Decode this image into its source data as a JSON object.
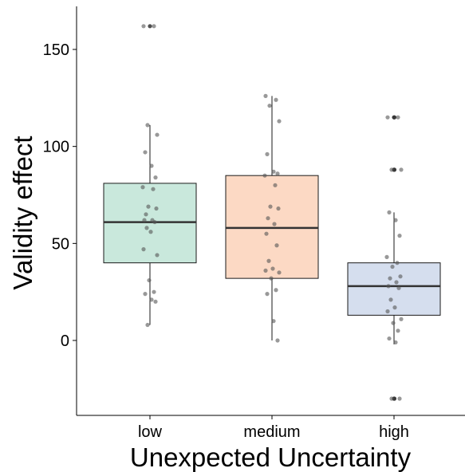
{
  "chart_data": {
    "type": "box",
    "title": "",
    "xlabel": "Unexpected Uncertainty",
    "ylabel": "Validity effect",
    "ylim": [
      -40,
      172
    ],
    "yticks": [
      0,
      50,
      100,
      150
    ],
    "grid": false,
    "legend": "none",
    "categories": [
      "low",
      "medium",
      "high"
    ],
    "boxes": [
      {
        "category": "low",
        "fill": "#c9e8dc",
        "q1": 40,
        "median": 61,
        "q3": 81,
        "whisker_low": 8,
        "whisker_high": 111,
        "outliers": [
          162
        ],
        "points": [
          162,
          162,
          111,
          106,
          97,
          90,
          84,
          79,
          78,
          69,
          68,
          65,
          62,
          62,
          61,
          58,
          56,
          47,
          44,
          31,
          25,
          24,
          21,
          20,
          8
        ]
      },
      {
        "category": "medium",
        "fill": "#fcd9c4",
        "q1": 32,
        "median": 58,
        "q3": 85,
        "whisker_low": 0,
        "whisker_high": 126,
        "outliers": [],
        "points": [
          126,
          124,
          121,
          113,
          96,
          87,
          86,
          85,
          80,
          69,
          68,
          63,
          60,
          55,
          49,
          41,
          37,
          36,
          35,
          32,
          26,
          24,
          10,
          0
        ]
      },
      {
        "category": "high",
        "fill": "#d5deee",
        "q1": 13,
        "median": 28,
        "q3": 40,
        "whisker_low": -2,
        "whisker_high": 66,
        "outliers": [
          115,
          115,
          88,
          88,
          -30,
          -30
        ],
        "points": [
          115,
          115,
          88,
          88,
          66,
          62,
          54,
          43,
          40,
          38,
          33,
          32,
          30,
          28,
          27,
          21,
          17,
          15,
          11,
          9,
          5,
          1,
          -1,
          -30,
          -30
        ]
      }
    ],
    "point_color": "#555555",
    "box_outline": "#1a1a1a"
  }
}
